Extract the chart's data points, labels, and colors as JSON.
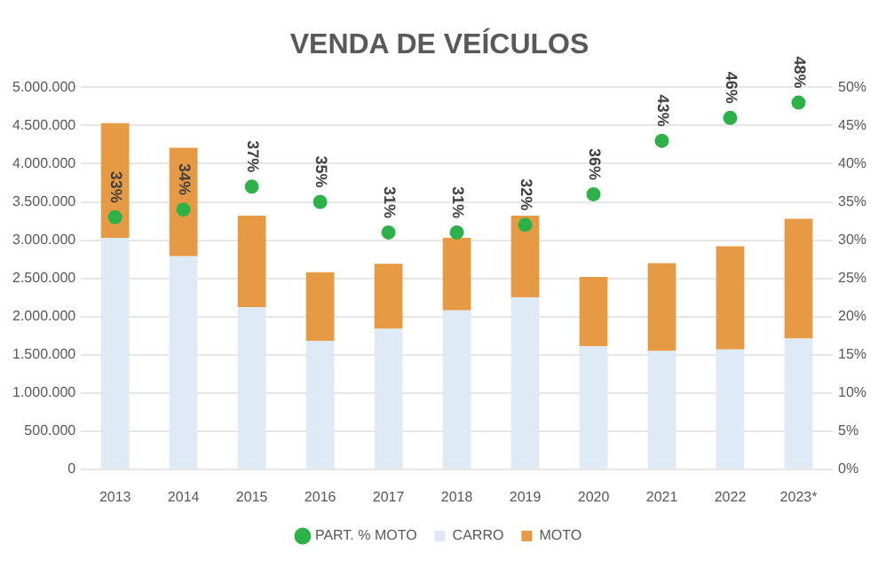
{
  "chart_data": {
    "type": "bar",
    "title": "VENDA DE VEÍCULOS",
    "stacked": true,
    "categories": [
      "2013",
      "2014",
      "2015",
      "2016",
      "2017",
      "2018",
      "2019",
      "2020",
      "2021",
      "2022",
      "2023*"
    ],
    "series": [
      {
        "name": "CARRO",
        "color": "#deeaf6",
        "values": [
          3030000,
          2790000,
          2120000,
          1680000,
          1840000,
          2080000,
          2250000,
          1610000,
          1550000,
          1570000,
          1710000
        ]
      },
      {
        "name": "MOTO",
        "color": "#e69a44",
        "values": [
          1500000,
          1420000,
          1200000,
          900000,
          850000,
          950000,
          1070000,
          910000,
          1150000,
          1350000,
          1570000
        ]
      },
      {
        "name": "PART. % MOTO",
        "type": "scatter",
        "axis": "y2",
        "color": "#2db24a",
        "marker": "circle",
        "values": [
          33,
          34,
          37,
          35,
          31,
          31,
          32,
          36,
          43,
          46,
          48
        ],
        "value_labels": [
          "33%",
          "34%",
          "37%",
          "35%",
          "31%",
          "31%",
          "32%",
          "36%",
          "43%",
          "46%",
          "48%"
        ]
      }
    ],
    "ylim": [
      0,
      5000000
    ],
    "yticks": [
      {
        "value": 0,
        "label": "0"
      },
      {
        "value": 500000,
        "label": "500.000"
      },
      {
        "value": 1000000,
        "label": "1.000.000"
      },
      {
        "value": 1500000,
        "label": "1.500.000"
      },
      {
        "value": 2000000,
        "label": "2.000.000"
      },
      {
        "value": 2500000,
        "label": "2.500.000"
      },
      {
        "value": 3000000,
        "label": "3.000.000"
      },
      {
        "value": 3500000,
        "label": "3.500.000"
      },
      {
        "value": 4000000,
        "label": "4.000.000"
      },
      {
        "value": 4500000,
        "label": "4.500.000"
      },
      {
        "value": 5000000,
        "label": "5.000.000"
      }
    ],
    "y2lim": [
      0,
      50
    ],
    "y2ticks": [
      {
        "value": 0,
        "label": "0%"
      },
      {
        "value": 5,
        "label": "5%"
      },
      {
        "value": 10,
        "label": "10%"
      },
      {
        "value": 15,
        "label": "15%"
      },
      {
        "value": 20,
        "label": "20%"
      },
      {
        "value": 25,
        "label": "25%"
      },
      {
        "value": 30,
        "label": "30%"
      },
      {
        "value": 35,
        "label": "35%"
      },
      {
        "value": 40,
        "label": "40%"
      },
      {
        "value": 45,
        "label": "45%"
      },
      {
        "value": 50,
        "label": "50%"
      }
    ],
    "grid": "y",
    "legend": "bottom"
  }
}
